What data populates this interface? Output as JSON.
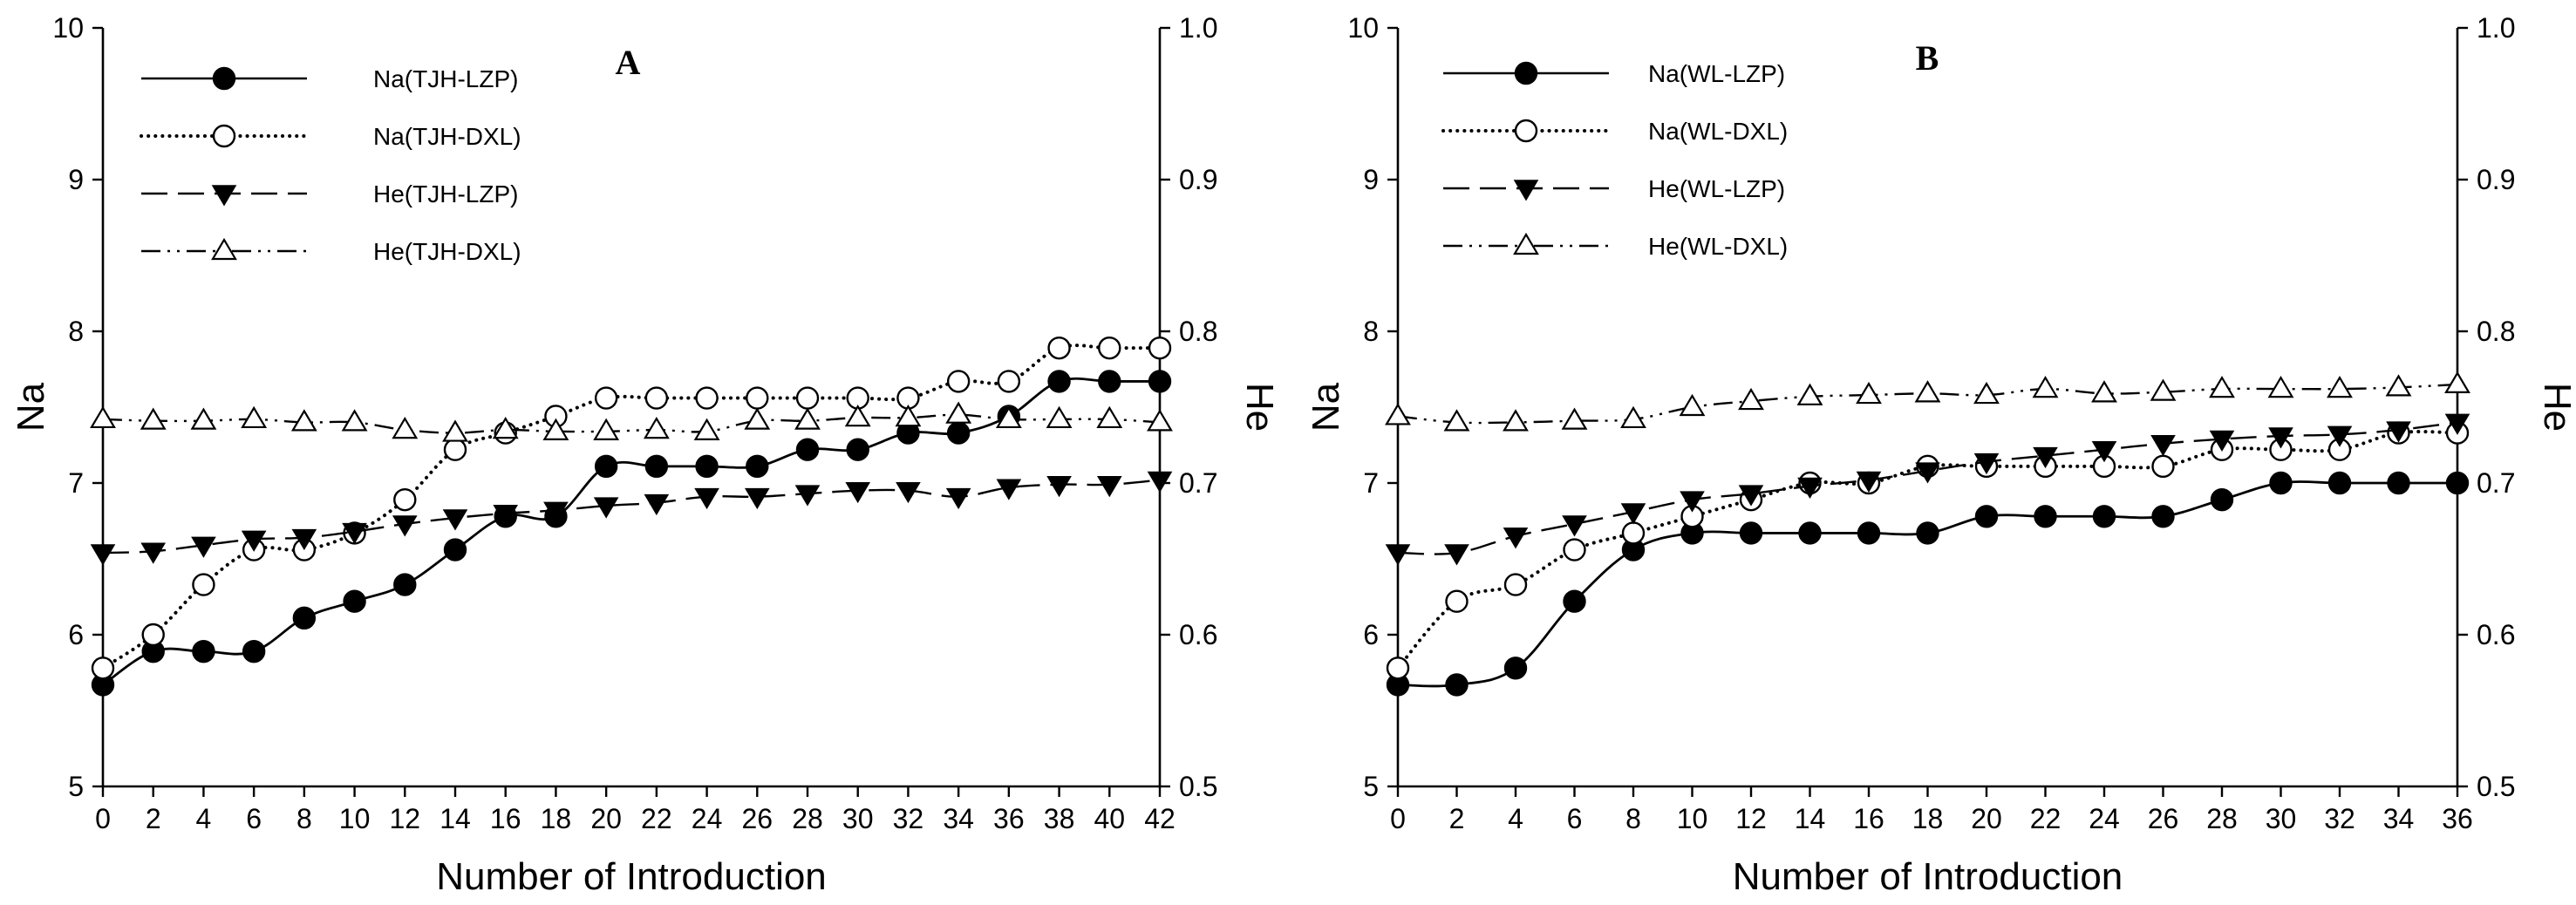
{
  "chart_data": [
    {
      "type": "line",
      "panel_label": "A",
      "xlabel": "Number of Introduction",
      "ylabel": "Na",
      "y2label": "He",
      "x": [
        0,
        2,
        4,
        6,
        8,
        10,
        12,
        14,
        16,
        18,
        20,
        22,
        24,
        26,
        28,
        30,
        32,
        34,
        36,
        38,
        40,
        42
      ],
      "xlim": [
        0,
        42
      ],
      "xticks": [
        "0",
        "2",
        "4",
        "6",
        "8",
        "10",
        "12",
        "14",
        "16",
        "18",
        "20",
        "22",
        "24",
        "26",
        "28",
        "30",
        "32",
        "34",
        "36",
        "38",
        "40",
        "42"
      ],
      "ylim": [
        5,
        10
      ],
      "yticks": [
        "5",
        "6",
        "7",
        "8",
        "9",
        "10"
      ],
      "y2lim": [
        0.5,
        1.0
      ],
      "y2ticks": [
        "0.5",
        "0.6",
        "0.7",
        "0.8",
        "0.9",
        "1.0"
      ],
      "series": [
        {
          "name": "Na(TJH-LZP)",
          "axis": "left",
          "marker": "filled-circle",
          "line": "solid",
          "values": [
            5.67,
            5.89,
            5.89,
            5.89,
            6.11,
            6.22,
            6.33,
            6.56,
            6.78,
            6.78,
            7.11,
            7.11,
            7.11,
            7.11,
            7.22,
            7.22,
            7.33,
            7.33,
            7.44,
            7.67,
            7.67,
            7.67
          ]
        },
        {
          "name": "Na(TJH-DXL)",
          "axis": "left",
          "marker": "open-circle",
          "line": "dotted",
          "values": [
            5.78,
            6.0,
            6.33,
            6.56,
            6.56,
            6.67,
            6.89,
            7.22,
            7.33,
            7.44,
            7.56,
            7.56,
            7.56,
            7.56,
            7.56,
            7.56,
            7.56,
            7.67,
            7.67,
            7.89,
            7.89,
            7.89
          ]
        },
        {
          "name": "He(TJH-LZP)",
          "axis": "right",
          "marker": "filled-triangle-down",
          "line": "dashed",
          "values": [
            0.654,
            0.655,
            0.659,
            0.663,
            0.664,
            0.668,
            0.673,
            0.677,
            0.68,
            0.682,
            0.685,
            0.687,
            0.691,
            0.691,
            0.693,
            0.695,
            0.695,
            0.691,
            0.697,
            0.699,
            0.699,
            0.702
          ]
        },
        {
          "name": "He(TJH-DXL)",
          "axis": "right",
          "marker": "open-triangle-up",
          "line": "dash-dot-dot",
          "values": [
            0.742,
            0.741,
            0.741,
            0.742,
            0.74,
            0.74,
            0.735,
            0.733,
            0.735,
            0.734,
            0.734,
            0.735,
            0.734,
            0.741,
            0.741,
            0.743,
            0.743,
            0.745,
            0.742,
            0.742,
            0.742,
            0.74
          ]
        }
      ]
    },
    {
      "type": "line",
      "panel_label": "B",
      "xlabel": "Number of Introduction",
      "ylabel": "Na",
      "y2label": "He",
      "x": [
        0,
        2,
        4,
        6,
        8,
        10,
        12,
        14,
        16,
        18,
        20,
        22,
        24,
        26,
        28,
        30,
        32,
        34,
        36
      ],
      "xlim": [
        0,
        36
      ],
      "xticks": [
        "0",
        "2",
        "4",
        "6",
        "8",
        "10",
        "12",
        "14",
        "16",
        "18",
        "20",
        "22",
        "24",
        "26",
        "28",
        "30",
        "32",
        "34",
        "36"
      ],
      "ylim": [
        5,
        10
      ],
      "yticks": [
        "5",
        "6",
        "7",
        "8",
        "9",
        "10"
      ],
      "y2lim": [
        0.5,
        1.0
      ],
      "y2ticks": [
        "0.5",
        "0.6",
        "0.7",
        "0.8",
        "0.9",
        "1.0"
      ],
      "series": [
        {
          "name": "Na(WL-LZP)",
          "axis": "left",
          "marker": "filled-circle",
          "line": "solid",
          "values": [
            5.67,
            5.67,
            5.78,
            6.22,
            6.56,
            6.67,
            6.67,
            6.67,
            6.67,
            6.67,
            6.78,
            6.78,
            6.78,
            6.78,
            6.89,
            7.0,
            7.0,
            7.0,
            7.0
          ]
        },
        {
          "name": "Na(WL-DXL)",
          "axis": "left",
          "marker": "open-circle",
          "line": "dotted",
          "values": [
            5.78,
            6.22,
            6.33,
            6.56,
            6.67,
            6.78,
            6.89,
            7.0,
            7.0,
            7.11,
            7.11,
            7.11,
            7.11,
            7.11,
            7.22,
            7.22,
            7.22,
            7.33,
            7.33
          ]
        },
        {
          "name": "He(WL-LZP)",
          "axis": "right",
          "marker": "filled-triangle-down",
          "line": "dashed",
          "values": [
            0.654,
            0.654,
            0.665,
            0.673,
            0.681,
            0.689,
            0.693,
            0.698,
            0.702,
            0.708,
            0.714,
            0.718,
            0.722,
            0.726,
            0.729,
            0.731,
            0.732,
            0.735,
            0.74
          ]
        },
        {
          "name": "He(WL-DXL)",
          "axis": "right",
          "marker": "open-triangle-up",
          "line": "dash-dot-dot",
          "values": [
            0.744,
            0.74,
            0.74,
            0.741,
            0.742,
            0.75,
            0.754,
            0.757,
            0.758,
            0.759,
            0.758,
            0.762,
            0.759,
            0.76,
            0.762,
            0.762,
            0.762,
            0.763,
            0.765
          ]
        }
      ]
    }
  ]
}
